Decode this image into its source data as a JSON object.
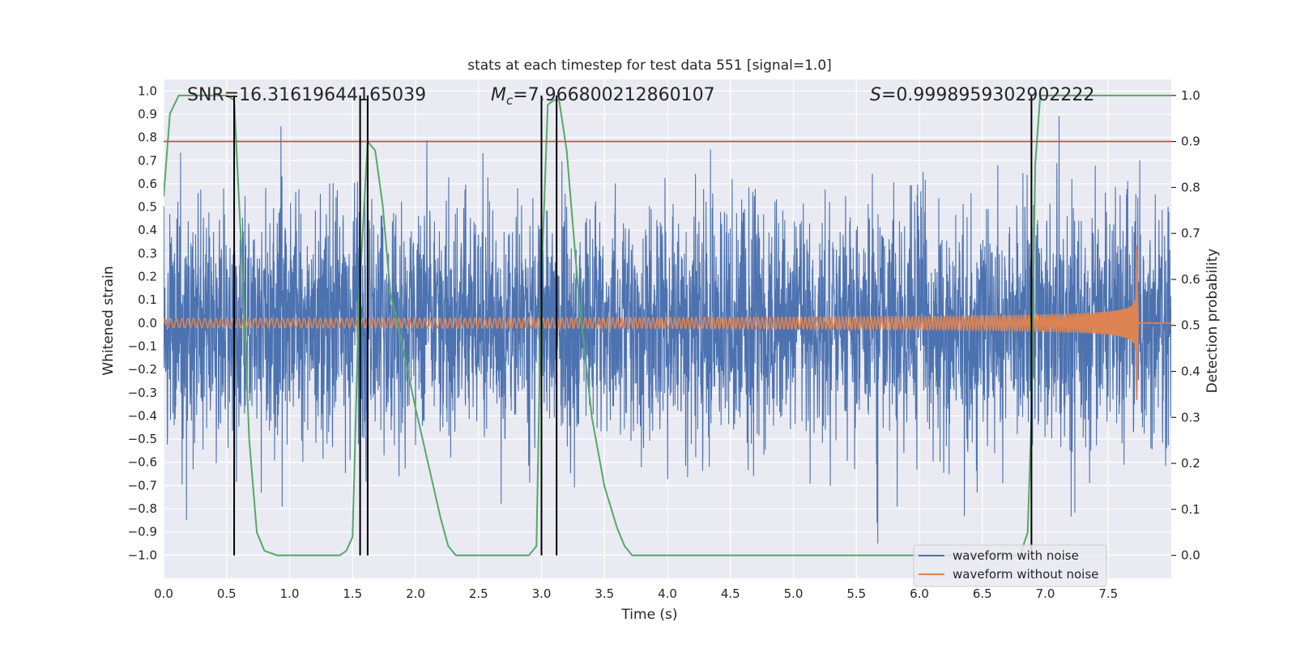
{
  "chart_data": {
    "type": "line",
    "title": "stats at each timestep for test data 551 [signal=1.0]",
    "xlabel": "Time (s)",
    "ylabel": "Whitened strain",
    "y2label": "Detection probability",
    "xlim": [
      0.0,
      8.0
    ],
    "ylim": [
      -1.1,
      1.05
    ],
    "y2lim": [
      -0.05,
      1.035
    ],
    "xticks": [
      0.0,
      0.5,
      1.0,
      1.5,
      2.0,
      2.5,
      3.0,
      3.5,
      4.0,
      4.5,
      5.0,
      5.5,
      6.0,
      6.5,
      7.0,
      7.5
    ],
    "yticks": [
      -1.0,
      -0.9,
      -0.8,
      -0.7,
      -0.6,
      -0.5,
      -0.4,
      -0.3,
      -0.2,
      -0.1,
      0.0,
      0.1,
      0.2,
      0.3,
      0.4,
      0.5,
      0.6,
      0.7,
      0.8,
      0.9,
      1.0
    ],
    "y2ticks": [
      0.0,
      0.1,
      0.2,
      0.3,
      0.4,
      0.5,
      0.6,
      0.7,
      0.8,
      0.9,
      1.0
    ],
    "grid": true,
    "legend_position": "bottom-right",
    "colors": {
      "background": "#eaeaf2",
      "grid": "#ffffff",
      "noisy": "#4c72b0",
      "clean": "#dd8452",
      "probability": "#55a868",
      "threshold": "#c44e52",
      "marker": "#000000"
    },
    "annotations": {
      "snr_label": "SNR=16.31619644165039",
      "mc_symbol": "M",
      "mc_subscript": "c",
      "mc_value": "=7.966800212860107",
      "s_symbol": "S",
      "s_value": "=0.9998959302902222"
    },
    "threshold": 0.9,
    "vertical_markers": [
      0.56,
      1.56,
      1.62,
      3.0,
      3.12,
      6.89
    ],
    "series": [
      {
        "name": "waveform with noise",
        "kind": "noise",
        "axis": "left",
        "sample_rate": 512,
        "duration": 8.0,
        "envelope": 0.25,
        "max": 0.98,
        "min": -1.0
      },
      {
        "name": "waveform without noise",
        "kind": "chirp",
        "axis": "left",
        "f_start": 22,
        "t_coalescence": 7.72,
        "peak_amplitude": 0.5,
        "min_amplitude": -0.38,
        "start_amplitude": 0.02,
        "ringdown_end": 7.74
      },
      {
        "name": "Detection probability",
        "kind": "probability",
        "axis": "right",
        "x": [
          0.0,
          0.05,
          0.12,
          0.18,
          0.25,
          0.35,
          0.45,
          0.5,
          0.56,
          0.62,
          0.68,
          0.74,
          0.8,
          0.9,
          1.0,
          1.2,
          1.4,
          1.45,
          1.5,
          1.55,
          1.62,
          1.68,
          1.74,
          1.8,
          1.9,
          2.0,
          2.1,
          2.2,
          2.26,
          2.32,
          2.4,
          2.6,
          2.8,
          2.9,
          2.96,
          3.0,
          3.05,
          3.1,
          3.14,
          3.2,
          3.3,
          3.4,
          3.5,
          3.6,
          3.66,
          3.72,
          3.8,
          4.0,
          5.0,
          6.0,
          6.5,
          6.8,
          6.86,
          6.89,
          6.92,
          6.96,
          7.0,
          7.5,
          8.0
        ],
        "y": [
          0.78,
          0.96,
          1.0,
          1.0,
          1.0,
          1.0,
          1.0,
          1.0,
          0.99,
          0.65,
          0.25,
          0.05,
          0.01,
          0.0,
          0.0,
          0.0,
          0.0,
          0.01,
          0.04,
          0.55,
          0.9,
          0.88,
          0.76,
          0.57,
          0.45,
          0.32,
          0.2,
          0.08,
          0.02,
          0.0,
          0.0,
          0.0,
          0.0,
          0.0,
          0.02,
          0.6,
          0.98,
          0.99,
          0.99,
          0.88,
          0.55,
          0.3,
          0.15,
          0.06,
          0.02,
          0.0,
          0.0,
          0.0,
          0.0,
          0.0,
          0.0,
          0.0,
          0.05,
          0.3,
          0.85,
          1.0,
          1.0,
          1.0,
          1.0
        ]
      }
    ]
  }
}
